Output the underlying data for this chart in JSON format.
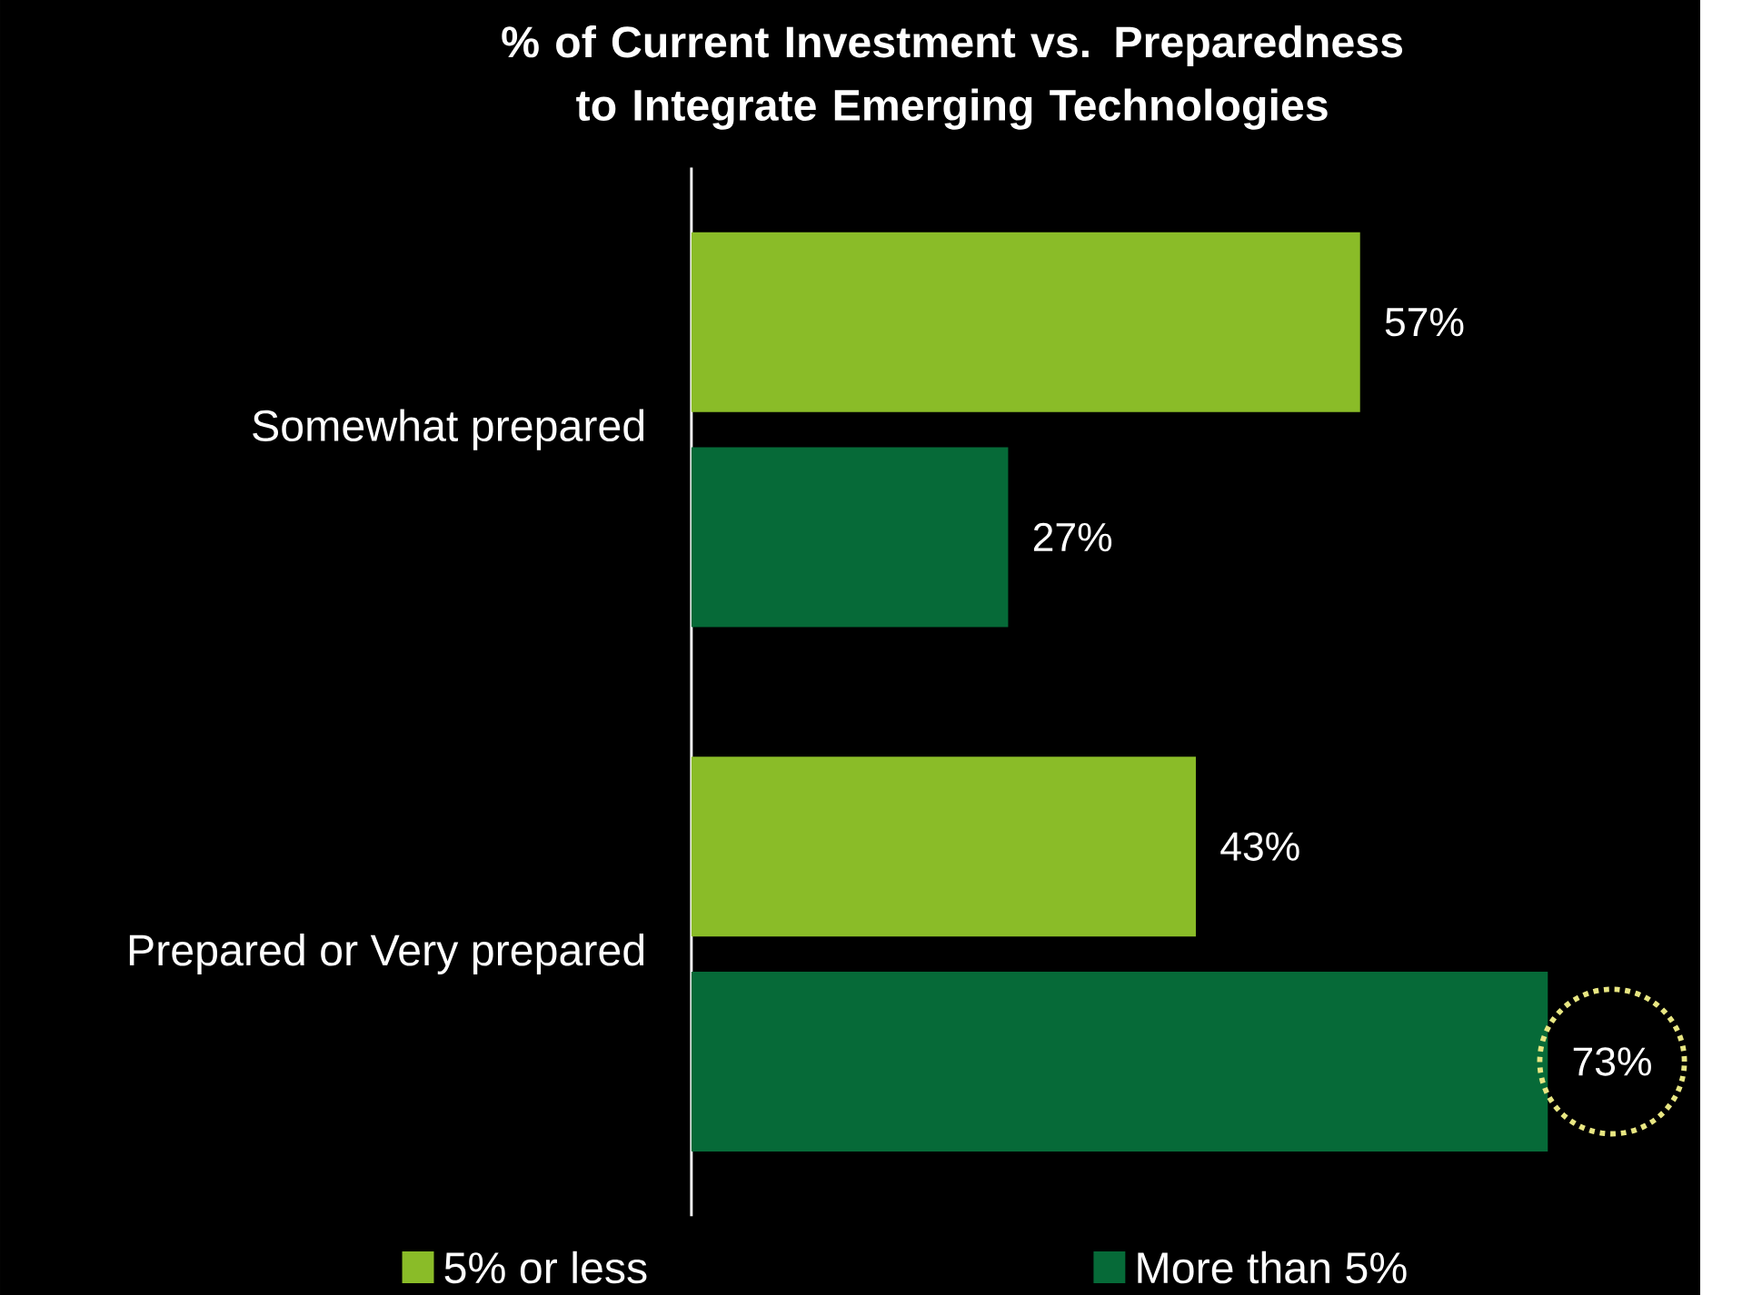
{
  "chart_data": {
    "type": "bar",
    "orientation": "horizontal",
    "title": "% of Current Investment vs. Preparedness to Integrate Emerging Technologies",
    "categories": [
      "Somewhat prepared",
      "Prepared or Very prepared"
    ],
    "series": [
      {
        "name": "5% or less",
        "color": "#8abc28",
        "values": [
          57,
          43
        ],
        "value_labels": [
          "57%",
          "43%"
        ]
      },
      {
        "name": "More than 5%",
        "color": "#066a38",
        "values": [
          27,
          73
        ],
        "value_labels": [
          "27%",
          "73%"
        ]
      }
    ],
    "xlim": [
      0,
      86
    ],
    "legend": "bottom"
  }
}
